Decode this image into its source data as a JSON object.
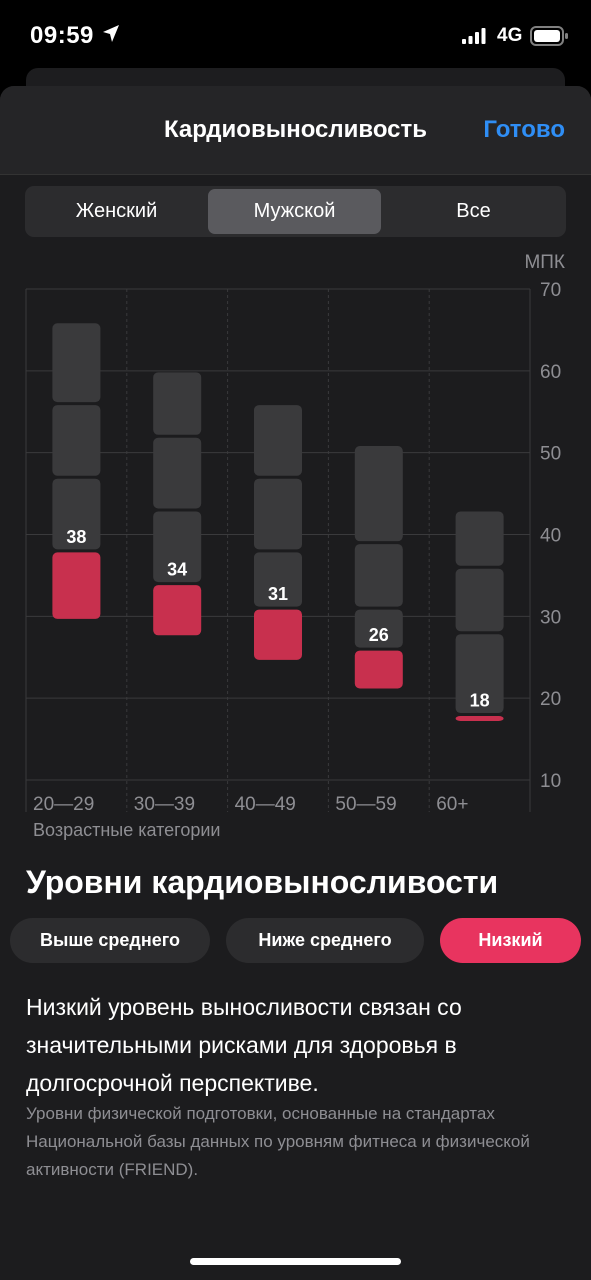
{
  "status_bar": {
    "time": "09:59",
    "network": "4G",
    "icons": [
      "location-arrow-icon",
      "signal-icon",
      "battery-icon"
    ]
  },
  "nav": {
    "title": "Кардиовыносливость",
    "done_label": "Готово"
  },
  "segments": {
    "items": [
      "Женский",
      "Мужской",
      "Все"
    ],
    "selected": "Мужской"
  },
  "colors": {
    "accent": "#2f8ef5",
    "bar": "#3a3a3c",
    "user_value": "#c8304e",
    "chip_active": "#e8345f"
  },
  "chart_data": {
    "type": "bar",
    "ylabel": "МПК",
    "xlabel": "Возрастные категории",
    "ylim": [
      10,
      70
    ],
    "y_ticks": [
      "70",
      "60",
      "50",
      "40",
      "30",
      "20",
      "10"
    ],
    "categories": [
      "20—29",
      "30—39",
      "40—49",
      "50—59",
      "60+"
    ],
    "ranges": [
      {
        "category": "20—29",
        "segments": [
          [
            29.5,
            38
          ],
          [
            38,
            47
          ],
          [
            47,
            56
          ],
          [
            56,
            66
          ]
        ]
      },
      {
        "category": "30—39",
        "segments": [
          [
            27.5,
            34
          ],
          [
            34,
            43
          ],
          [
            43,
            52
          ],
          [
            52,
            60
          ]
        ]
      },
      {
        "category": "40—49",
        "segments": [
          [
            24.5,
            31
          ],
          [
            31,
            38
          ],
          [
            38,
            47
          ],
          [
            47,
            56
          ]
        ]
      },
      {
        "category": "50—59",
        "segments": [
          [
            21,
            26
          ],
          [
            26,
            31
          ],
          [
            31,
            39
          ],
          [
            39,
            51
          ]
        ]
      },
      {
        "category": "60+",
        "segments": [
          [
            17.5,
            18
          ],
          [
            18,
            28
          ],
          [
            28,
            36
          ],
          [
            36,
            43
          ]
        ]
      }
    ],
    "values": [
      38,
      34,
      31,
      26,
      18
    ]
  },
  "levels": {
    "title": "Уровни кардиовыносливости",
    "chips": [
      "Выше среднего",
      "Ниже среднего",
      "Низкий"
    ],
    "selected": "Низкий",
    "description": "Низкий уровень выносливости связан со значительными рисками для здоровья в долгосрочной перспективе.",
    "note": "Уровни физической подготовки, основанные на стандартах Национальной базы данных по уровням фитнеса и физической активности (FRIEND)."
  }
}
